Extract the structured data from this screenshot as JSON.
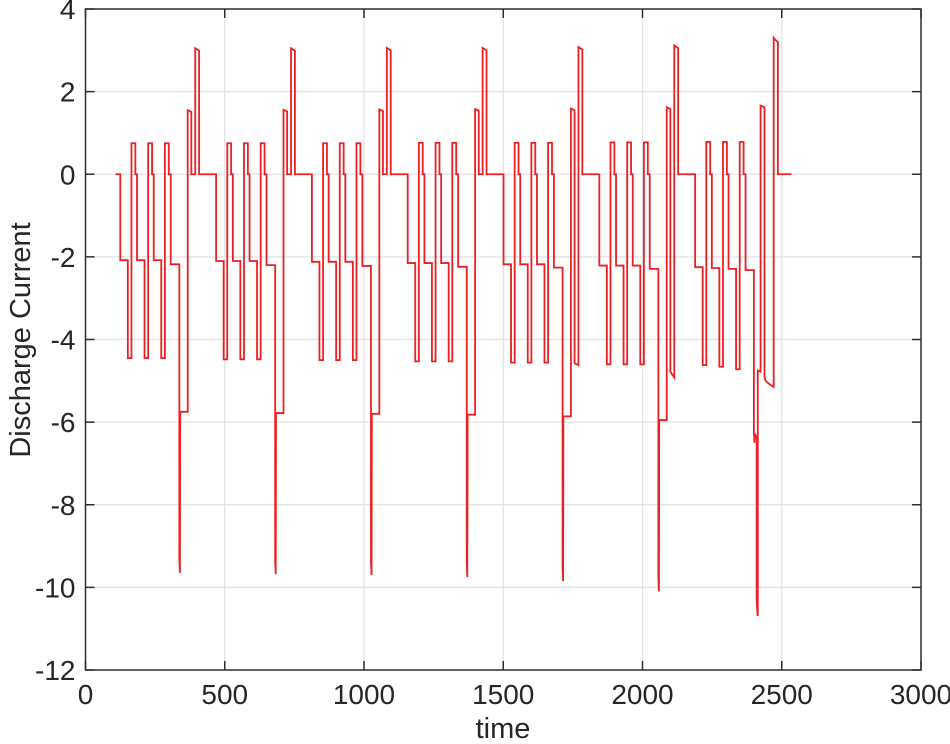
{
  "figure": {
    "background": "#ffffff",
    "border_color": "#2e2e2e",
    "grid_color": "#e2e2e2",
    "text_color": "#262626"
  },
  "chart_data": {
    "type": "line",
    "title": "",
    "xlabel": "time",
    "ylabel": "Discharge Current",
    "xlim": [
      0,
      3000
    ],
    "ylim": [
      -12,
      4
    ],
    "x_ticks": [
      0,
      500,
      1000,
      1500,
      2000,
      2500,
      3000
    ],
    "y_ticks": [
      -12,
      -10,
      -8,
      -6,
      -4,
      -2,
      0,
      2,
      4
    ],
    "grid": true,
    "legend": "none",
    "line_color": "#ed1f24",
    "line_width": 1.8,
    "description": "Pulsed battery discharge-current profile: 7 repeating cycles (~344 time units each). Each cycle: three pulse groups (0 to -2.1 rest, -4.5 dip, +0.75 recovery spike), then a long -2.2 rest, a deep dive to about -9.7, a -5.8 recovery step, a +1.55 spike and a +3.05 spike. Levels drift lower each cycle; final cycle dives to -10.7 with -6.3/-6.45 notch, +1.66 and +3.3 spikes and a -4.75 to -5.15 decay between them.",
    "series": [
      {
        "name": "discharge-current",
        "points": [
          [
            108,
            0
          ],
          [
            125,
            0
          ],
          [
            125,
            -2.08
          ],
          [
            152,
            -2.08
          ],
          [
            152,
            -4.45
          ],
          [
            165,
            -4.45
          ],
          [
            165,
            0.75
          ],
          [
            179,
            0.75
          ],
          [
            179,
            0
          ],
          [
            185,
            0
          ],
          [
            185,
            -2.08
          ],
          [
            212,
            -2.08
          ],
          [
            212,
            -4.45
          ],
          [
            225,
            -4.45
          ],
          [
            225,
            0.75
          ],
          [
            239,
            0.75
          ],
          [
            239,
            0
          ],
          [
            245,
            0
          ],
          [
            245,
            -2.08
          ],
          [
            272,
            -2.08
          ],
          [
            272,
            -4.45
          ],
          [
            285,
            -4.45
          ],
          [
            285,
            0.75
          ],
          [
            299,
            0.75
          ],
          [
            299,
            0
          ],
          [
            306,
            0
          ],
          [
            306,
            -2.18
          ],
          [
            337,
            -2.18
          ],
          [
            337,
            -9.3
          ],
          [
            339,
            -9.65
          ],
          [
            340,
            -5.75
          ],
          [
            367,
            -5.75
          ],
          [
            367,
            1.55
          ],
          [
            380,
            1.51
          ],
          [
            380,
            0
          ],
          [
            394,
            0
          ],
          [
            394,
            3.05
          ],
          [
            408,
            2.99
          ],
          [
            408,
            0
          ],
          [
            469,
            0
          ],
          [
            469,
            -2.1
          ],
          [
            496,
            -2.1
          ],
          [
            496,
            -4.48
          ],
          [
            509,
            -4.48
          ],
          [
            509,
            0.75
          ],
          [
            523,
            0.75
          ],
          [
            523,
            0
          ],
          [
            529,
            0
          ],
          [
            529,
            -2.1
          ],
          [
            556,
            -2.1
          ],
          [
            556,
            -4.48
          ],
          [
            569,
            -4.48
          ],
          [
            569,
            0.75
          ],
          [
            583,
            0.75
          ],
          [
            583,
            0
          ],
          [
            589,
            0
          ],
          [
            589,
            -2.1
          ],
          [
            616,
            -2.1
          ],
          [
            616,
            -4.48
          ],
          [
            629,
            -4.48
          ],
          [
            629,
            0.75
          ],
          [
            643,
            0.75
          ],
          [
            643,
            0
          ],
          [
            650,
            0
          ],
          [
            650,
            -2.2
          ],
          [
            681,
            -2.2
          ],
          [
            681,
            -9.33
          ],
          [
            683,
            -9.68
          ],
          [
            684,
            -5.78
          ],
          [
            711,
            -5.78
          ],
          [
            711,
            1.56
          ],
          [
            724,
            1.52
          ],
          [
            724,
            0
          ],
          [
            738,
            0
          ],
          [
            738,
            3.05
          ],
          [
            752,
            2.99
          ],
          [
            752,
            0
          ],
          [
            813,
            0
          ],
          [
            813,
            -2.12
          ],
          [
            840,
            -2.12
          ],
          [
            840,
            -4.5
          ],
          [
            853,
            -4.5
          ],
          [
            853,
            0.75
          ],
          [
            867,
            0.75
          ],
          [
            867,
            0
          ],
          [
            873,
            0
          ],
          [
            873,
            -2.12
          ],
          [
            900,
            -2.12
          ],
          [
            900,
            -4.5
          ],
          [
            913,
            -4.5
          ],
          [
            913,
            0.75
          ],
          [
            927,
            0.75
          ],
          [
            927,
            0
          ],
          [
            933,
            0
          ],
          [
            933,
            -2.12
          ],
          [
            960,
            -2.12
          ],
          [
            960,
            -4.5
          ],
          [
            973,
            -4.5
          ],
          [
            973,
            0.75
          ],
          [
            987,
            0.75
          ],
          [
            987,
            0
          ],
          [
            994,
            0
          ],
          [
            994,
            -2.22
          ],
          [
            1025,
            -2.22
          ],
          [
            1025,
            -9.35
          ],
          [
            1027,
            -9.7
          ],
          [
            1028,
            -5.8
          ],
          [
            1055,
            -5.8
          ],
          [
            1055,
            1.57
          ],
          [
            1068,
            1.53
          ],
          [
            1068,
            0
          ],
          [
            1082,
            0
          ],
          [
            1082,
            3.06
          ],
          [
            1096,
            3.0
          ],
          [
            1096,
            0
          ],
          [
            1157,
            0
          ],
          [
            1157,
            -2.15
          ],
          [
            1184,
            -2.15
          ],
          [
            1184,
            -4.53
          ],
          [
            1197,
            -4.53
          ],
          [
            1197,
            0.76
          ],
          [
            1211,
            0.76
          ],
          [
            1211,
            0
          ],
          [
            1217,
            0
          ],
          [
            1217,
            -2.15
          ],
          [
            1244,
            -2.15
          ],
          [
            1244,
            -4.53
          ],
          [
            1257,
            -4.53
          ],
          [
            1257,
            0.76
          ],
          [
            1271,
            0.76
          ],
          [
            1271,
            0
          ],
          [
            1277,
            0
          ],
          [
            1277,
            -2.15
          ],
          [
            1304,
            -2.15
          ],
          [
            1304,
            -4.53
          ],
          [
            1317,
            -4.53
          ],
          [
            1317,
            0.76
          ],
          [
            1331,
            0.76
          ],
          [
            1331,
            0
          ],
          [
            1338,
            0
          ],
          [
            1338,
            -2.24
          ],
          [
            1369,
            -2.24
          ],
          [
            1369,
            -9.4
          ],
          [
            1371,
            -9.75
          ],
          [
            1372,
            -5.82
          ],
          [
            1399,
            -5.82
          ],
          [
            1399,
            1.58
          ],
          [
            1412,
            1.54
          ],
          [
            1412,
            0
          ],
          [
            1426,
            0
          ],
          [
            1426,
            3.06
          ],
          [
            1440,
            3.0
          ],
          [
            1440,
            0
          ],
          [
            1501,
            0
          ],
          [
            1501,
            -2.18
          ],
          [
            1528,
            -2.18
          ],
          [
            1528,
            -4.56
          ],
          [
            1541,
            -4.56
          ],
          [
            1541,
            0.76
          ],
          [
            1555,
            0.76
          ],
          [
            1555,
            0
          ],
          [
            1561,
            0
          ],
          [
            1561,
            -2.18
          ],
          [
            1588,
            -2.18
          ],
          [
            1588,
            -4.56
          ],
          [
            1601,
            -4.56
          ],
          [
            1601,
            0.76
          ],
          [
            1615,
            0.76
          ],
          [
            1615,
            0
          ],
          [
            1621,
            0
          ],
          [
            1621,
            -2.18
          ],
          [
            1648,
            -2.18
          ],
          [
            1648,
            -4.56
          ],
          [
            1661,
            -4.56
          ],
          [
            1661,
            0.76
          ],
          [
            1675,
            0.76
          ],
          [
            1675,
            0
          ],
          [
            1682,
            0
          ],
          [
            1682,
            -2.26
          ],
          [
            1713,
            -2.26
          ],
          [
            1713,
            -9.5
          ],
          [
            1715,
            -9.85
          ],
          [
            1716,
            -5.86
          ],
          [
            1743,
            -5.86
          ],
          [
            1743,
            1.59
          ],
          [
            1756,
            1.55
          ],
          [
            1756,
            -4.58
          ],
          [
            1770,
            -4.62
          ],
          [
            1770,
            3.08
          ],
          [
            1784,
            3.02
          ],
          [
            1784,
            0
          ],
          [
            1845,
            0
          ],
          [
            1845,
            -2.21
          ],
          [
            1872,
            -2.21
          ],
          [
            1872,
            -4.6
          ],
          [
            1885,
            -4.6
          ],
          [
            1885,
            0.77
          ],
          [
            1899,
            0.77
          ],
          [
            1899,
            0
          ],
          [
            1905,
            0
          ],
          [
            1905,
            -2.21
          ],
          [
            1932,
            -2.21
          ],
          [
            1932,
            -4.6
          ],
          [
            1945,
            -4.6
          ],
          [
            1945,
            0.77
          ],
          [
            1959,
            0.77
          ],
          [
            1959,
            0
          ],
          [
            1965,
            0
          ],
          [
            1965,
            -2.21
          ],
          [
            1992,
            -2.21
          ],
          [
            1992,
            -4.6
          ],
          [
            2005,
            -4.6
          ],
          [
            2005,
            0.77
          ],
          [
            2019,
            0.77
          ],
          [
            2019,
            0
          ],
          [
            2026,
            0
          ],
          [
            2026,
            -2.29
          ],
          [
            2057,
            -2.29
          ],
          [
            2057,
            -9.75
          ],
          [
            2059,
            -10.1
          ],
          [
            2060,
            -5.95
          ],
          [
            2087,
            -5.95
          ],
          [
            2087,
            1.62
          ],
          [
            2100,
            1.58
          ],
          [
            2100,
            -4.78
          ],
          [
            2114,
            -4.92
          ],
          [
            2114,
            3.12
          ],
          [
            2128,
            3.05
          ],
          [
            2128,
            0
          ],
          [
            2189,
            0
          ],
          [
            2189,
            -2.25
          ],
          [
            2216,
            -2.25
          ],
          [
            2216,
            -4.62
          ],
          [
            2229,
            -4.62
          ],
          [
            2229,
            0.78
          ],
          [
            2243,
            0.78
          ],
          [
            2243,
            0
          ],
          [
            2249,
            0
          ],
          [
            2249,
            -2.27
          ],
          [
            2276,
            -2.27
          ],
          [
            2276,
            -4.66
          ],
          [
            2289,
            -4.66
          ],
          [
            2289,
            0.78
          ],
          [
            2303,
            0.78
          ],
          [
            2303,
            0
          ],
          [
            2309,
            0
          ],
          [
            2309,
            -2.29
          ],
          [
            2336,
            -2.29
          ],
          [
            2336,
            -4.72
          ],
          [
            2349,
            -4.72
          ],
          [
            2349,
            0.78
          ],
          [
            2363,
            0.78
          ],
          [
            2363,
            0
          ],
          [
            2370,
            0
          ],
          [
            2370,
            -2.32
          ],
          [
            2400,
            -2.32
          ],
          [
            2400,
            -6.25
          ],
          [
            2402,
            -6.5
          ],
          [
            2404,
            -6.3
          ],
          [
            2410,
            -6.35
          ],
          [
            2410,
            -10.3
          ],
          [
            2413,
            -10.67
          ],
          [
            2414,
            -10.67
          ],
          [
            2414,
            -4.75
          ],
          [
            2424,
            -4.78
          ],
          [
            2424,
            1.66
          ],
          [
            2438,
            1.62
          ],
          [
            2438,
            -4.9
          ],
          [
            2442,
            -5.0
          ],
          [
            2452,
            -5.06
          ],
          [
            2464,
            -5.12
          ],
          [
            2471,
            -5.15
          ],
          [
            2471,
            3.3
          ],
          [
            2473,
            3.28
          ],
          [
            2486,
            3.2
          ],
          [
            2486,
            0
          ],
          [
            2535,
            0
          ]
        ]
      }
    ]
  }
}
